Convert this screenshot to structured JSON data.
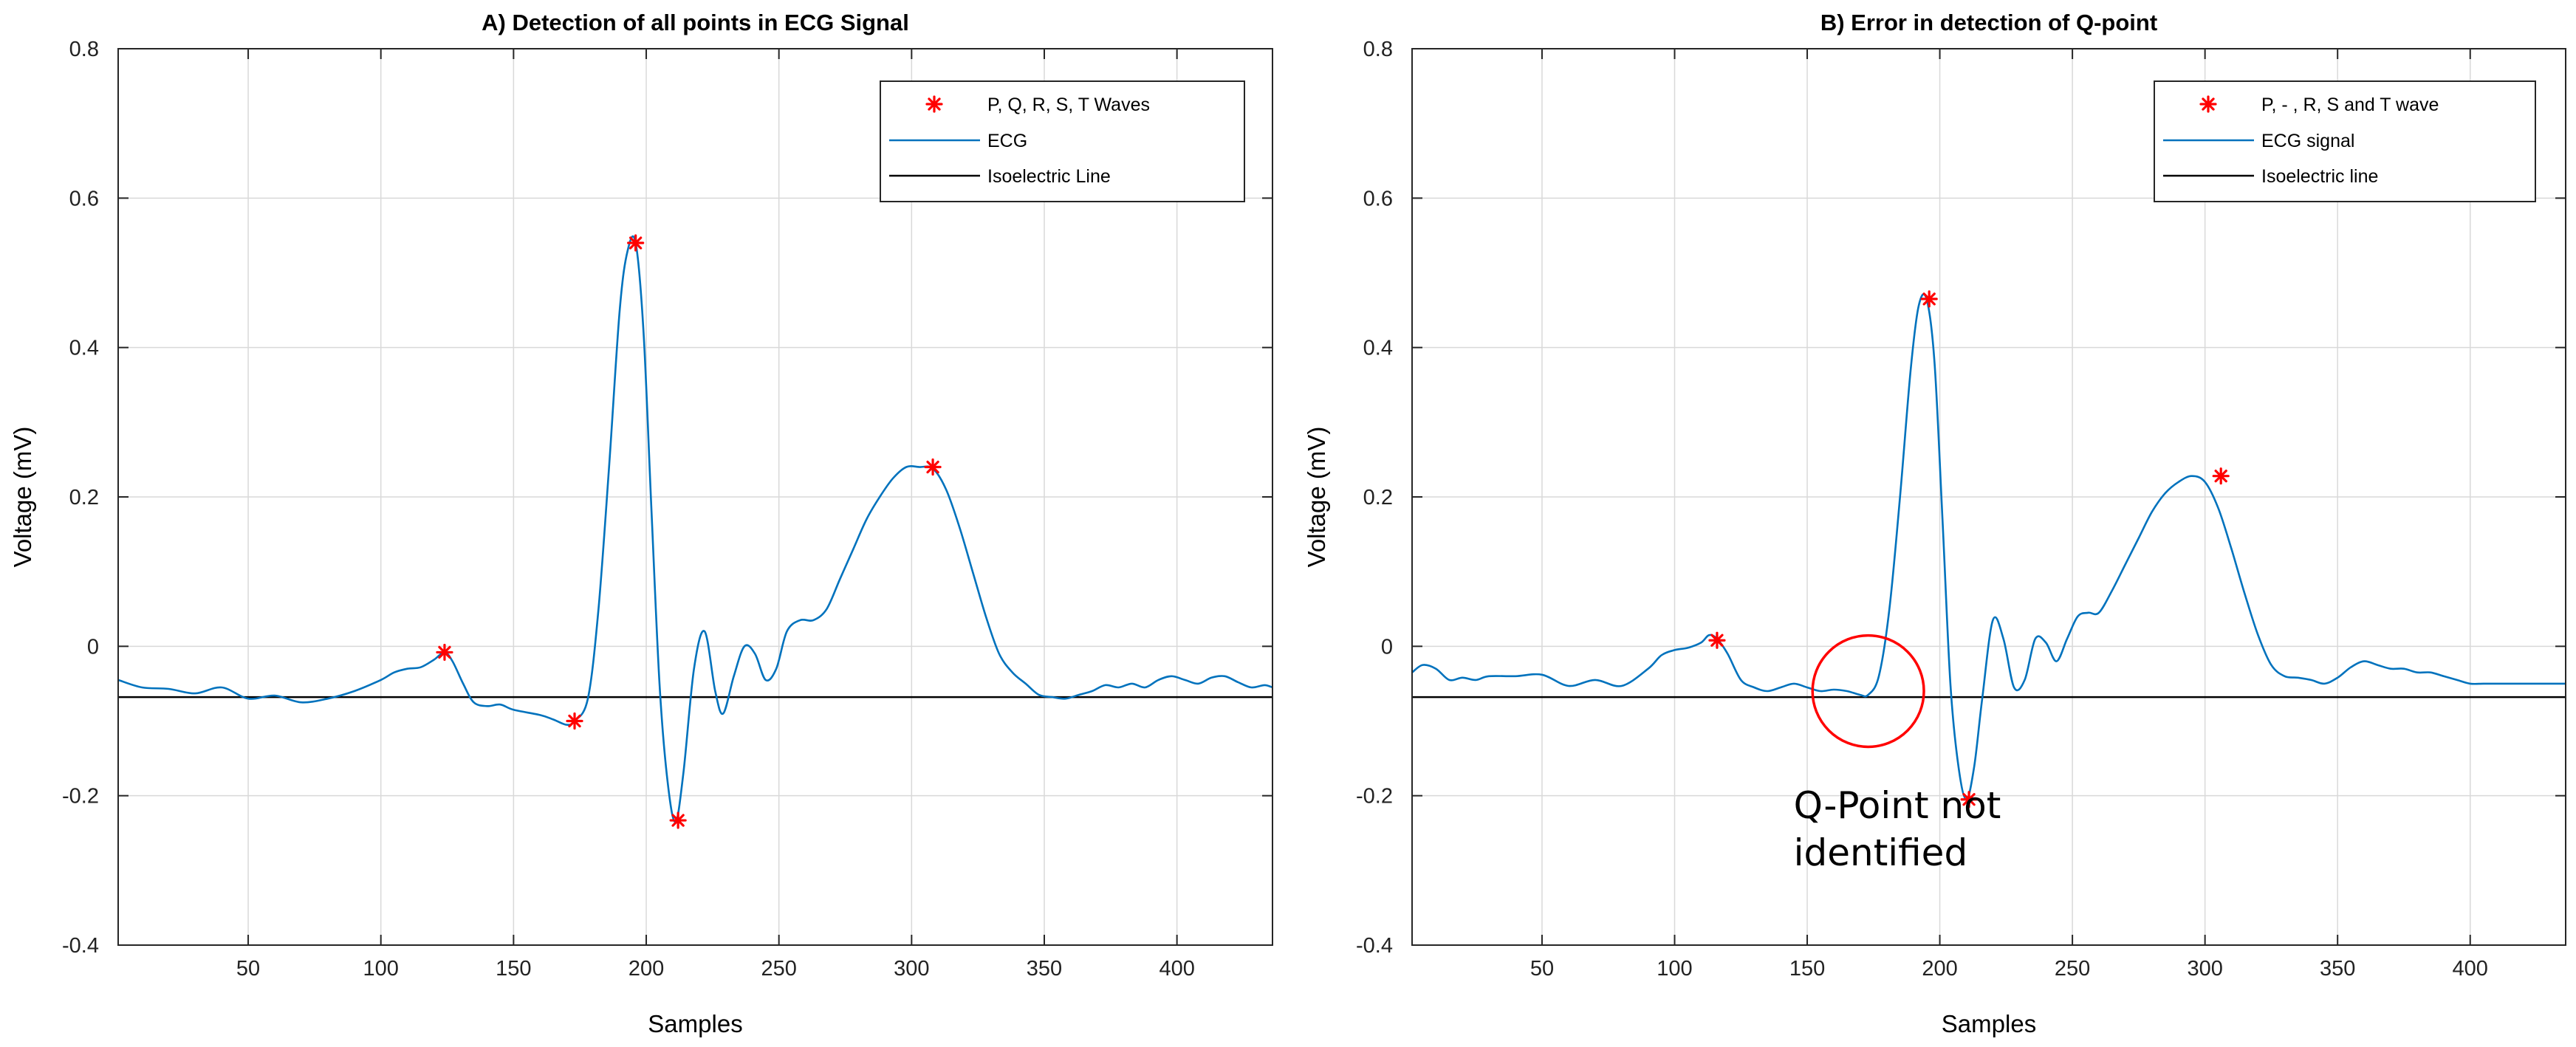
{
  "chart_data": [
    {
      "type": "line",
      "title": "A) Detection of all points in ECG Signal",
      "xlabel": "Samples",
      "ylabel": "Voltage (mV)",
      "xlim": [
        1,
        436
      ],
      "ylim": [
        -0.4,
        0.8
      ],
      "xticks": [
        50,
        100,
        150,
        200,
        250,
        300,
        350,
        400
      ],
      "yticks": [
        -0.4,
        -0.2,
        0,
        0.2,
        0.4,
        0.6,
        0.8
      ],
      "ytick_labels": [
        "-0.4",
        "-0.2",
        "0",
        "0.2",
        "0.4",
        "0.6",
        "0.8"
      ],
      "grid": true,
      "legend_position": "top-right",
      "legend": [
        "P, Q, R, S, T Waves",
        "ECG",
        "Isoelectric Line"
      ],
      "isoelectric": -0.068,
      "series": [
        {
          "name": "ECG",
          "x": [
            1,
            10,
            20,
            30,
            40,
            50,
            60,
            70,
            80,
            90,
            100,
            105,
            110,
            115,
            120,
            124,
            127,
            131,
            135,
            140,
            145,
            150,
            160,
            165,
            170,
            173,
            178,
            182,
            186,
            190,
            193,
            196,
            199,
            202,
            205,
            208,
            211,
            214,
            218,
            222,
            226,
            229,
            233,
            237,
            241,
            245,
            249,
            253,
            258,
            263,
            268,
            273,
            278,
            283,
            288,
            293,
            298,
            303,
            308,
            313,
            318,
            323,
            328,
            333,
            338,
            343,
            348,
            353,
            358,
            363,
            368,
            373,
            378,
            383,
            388,
            393,
            398,
            403,
            408,
            413,
            418,
            423,
            428,
            433,
            436
          ],
          "y": [
            -0.045,
            -0.055,
            -0.057,
            -0.063,
            -0.055,
            -0.07,
            -0.066,
            -0.075,
            -0.07,
            -0.06,
            -0.045,
            -0.035,
            -0.03,
            -0.028,
            -0.018,
            -0.008,
            -0.02,
            -0.05,
            -0.075,
            -0.08,
            -0.078,
            -0.085,
            -0.092,
            -0.098,
            -0.105,
            -0.1,
            -0.07,
            0.05,
            0.24,
            0.45,
            0.53,
            0.54,
            0.42,
            0.18,
            -0.05,
            -0.18,
            -0.235,
            -0.17,
            -0.03,
            0.02,
            -0.06,
            -0.09,
            -0.04,
            0,
            -0.01,
            -0.045,
            -0.03,
            0.02,
            0.035,
            0.035,
            0.05,
            0.09,
            0.13,
            0.17,
            0.2,
            0.225,
            0.24,
            0.24,
            0.238,
            0.21,
            0.16,
            0.1,
            0.04,
            -0.01,
            -0.035,
            -0.05,
            -0.065,
            -0.068,
            -0.07,
            -0.065,
            -0.06,
            -0.052,
            -0.055,
            -0.05,
            -0.055,
            -0.045,
            -0.04,
            -0.045,
            -0.05,
            -0.042,
            -0.04,
            -0.048,
            -0.055,
            -0.052,
            -0.055
          ]
        },
        {
          "name": "P, Q, R, S, T Waves",
          "x": [
            124,
            173,
            196,
            212,
            308
          ],
          "y": [
            -0.008,
            -0.1,
            0.54,
            -0.233,
            0.24
          ]
        }
      ]
    },
    {
      "type": "line",
      "title": "B) Error in detection of Q-point",
      "xlabel": "Samples",
      "ylabel": "Voltage (mV)",
      "xlim": [
        1,
        436
      ],
      "ylim": [
        -0.4,
        0.8
      ],
      "xticks": [
        50,
        100,
        150,
        200,
        250,
        300,
        350,
        400
      ],
      "yticks": [
        -0.4,
        -0.2,
        0,
        0.2,
        0.4,
        0.6,
        0.8
      ],
      "ytick_labels": [
        "-0.4",
        "-0.2",
        "0",
        "0.2",
        "0.4",
        "0.6",
        "0.8"
      ],
      "grid": true,
      "legend_position": "top-right",
      "legend": [
        "P, - , R, S and T wave",
        "ECG signal",
        "Isoelectric line"
      ],
      "isoelectric": -0.068,
      "annotation": {
        "text_line1": "Q-Point not",
        "text_line2": "identified",
        "circle_center": [
          173,
          -0.06
        ],
        "circle_radius_samples": 21
      },
      "series": [
        {
          "name": "ECG signal",
          "x": [
            1,
            5,
            10,
            15,
            20,
            25,
            30,
            40,
            50,
            60,
            70,
            80,
            90,
            95,
            100,
            105,
            110,
            113,
            116,
            120,
            125,
            130,
            135,
            140,
            145,
            150,
            155,
            160,
            165,
            170,
            173,
            177,
            181,
            185,
            189,
            192,
            195,
            198,
            201,
            204,
            207,
            210,
            213,
            216,
            220,
            224,
            228,
            232,
            236,
            240,
            244,
            248,
            252,
            256,
            260,
            265,
            270,
            275,
            280,
            285,
            290,
            295,
            300,
            305,
            310,
            315,
            320,
            325,
            330,
            335,
            340,
            345,
            350,
            355,
            360,
            365,
            370,
            375,
            380,
            385,
            390,
            395,
            400,
            405,
            410,
            415,
            420,
            425,
            430,
            436
          ],
          "y": [
            -0.035,
            -0.025,
            -0.03,
            -0.045,
            -0.042,
            -0.045,
            -0.04,
            -0.04,
            -0.038,
            -0.053,
            -0.045,
            -0.053,
            -0.03,
            -0.012,
            -0.005,
            -0.002,
            0.005,
            0.015,
            0.01,
            -0.01,
            -0.045,
            -0.055,
            -0.06,
            -0.055,
            -0.05,
            -0.055,
            -0.06,
            -0.058,
            -0.06,
            -0.065,
            -0.065,
            -0.04,
            0.05,
            0.2,
            0.37,
            0.455,
            0.465,
            0.38,
            0.17,
            -0.05,
            -0.16,
            -0.205,
            -0.16,
            -0.07,
            0.035,
            0.01,
            -0.055,
            -0.045,
            0.01,
            0.005,
            -0.02,
            0.01,
            0.04,
            0.045,
            0.045,
            0.075,
            0.11,
            0.145,
            0.18,
            0.205,
            0.22,
            0.228,
            0.22,
            0.185,
            0.13,
            0.07,
            0.015,
            -0.025,
            -0.04,
            -0.042,
            -0.045,
            -0.05,
            -0.042,
            -0.028,
            -0.02,
            -0.025,
            -0.03,
            -0.03,
            -0.035,
            -0.035,
            -0.04,
            -0.045,
            -0.05,
            -0.05,
            -0.05,
            -0.05,
            -0.05,
            -0.05,
            -0.05,
            -0.05
          ]
        },
        {
          "name": "P, - , R, S and T wave",
          "x": [
            116,
            196,
            211,
            306
          ],
          "y": [
            0.008,
            0.465,
            -0.205,
            0.228
          ]
        }
      ]
    }
  ]
}
